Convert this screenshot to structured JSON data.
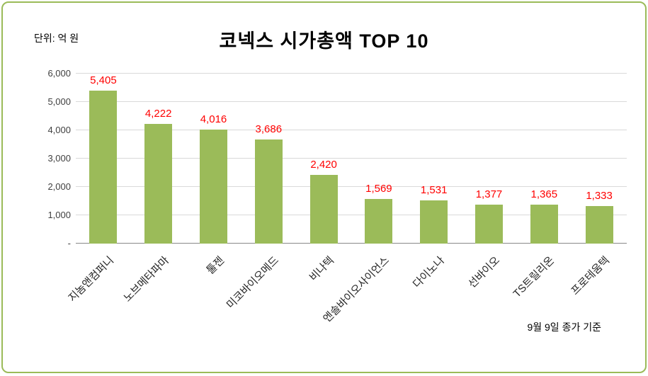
{
  "chart": {
    "title": "코넥스 시가총액 TOP 10",
    "unit_label": "단위: 억 원",
    "footnote": "9월 9일 종가 기준"
  },
  "chart_data": {
    "type": "bar",
    "title": "코넥스 시가총액 TOP 10",
    "categories": [
      "지놈앤컴퍼니",
      "노브메타파마",
      "툴젠",
      "미코바이오메드",
      "비나텍",
      "엔솔바이오사이언스",
      "다이노나",
      "선바이오",
      "TS트릴리온",
      "프로테움텍"
    ],
    "values": [
      5405,
      4222,
      4016,
      3686,
      2420,
      1569,
      1531,
      1377,
      1365,
      1333
    ],
    "value_labels": [
      "5,405",
      "4,222",
      "4,016",
      "3,686",
      "2,420",
      "1,569",
      "1,531",
      "1,377",
      "1,365",
      "1,333"
    ],
    "xlabel": "",
    "ylabel": "단위: 억 원",
    "ylim": [
      0,
      6000
    ],
    "ytick_step": 1000,
    "ytick_labels": [
      "-",
      "1,000",
      "2,000",
      "3,000",
      "4,000",
      "5,000",
      "6,000"
    ],
    "grid": true,
    "legend": false,
    "bar_color": "#9BBB59",
    "value_label_color": "#FF0000",
    "footnote": "9월 9일 종가 기준"
  }
}
